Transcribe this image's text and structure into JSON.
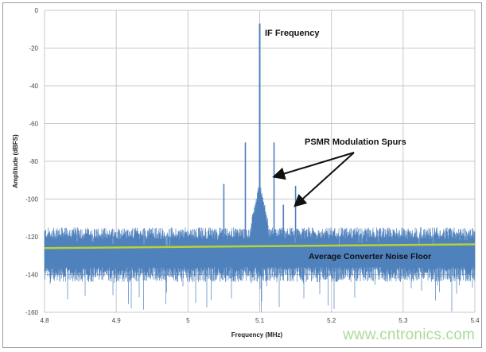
{
  "chart_data": {
    "type": "line",
    "title": "",
    "xlabel": "Frequency (MHz)",
    "ylabel": "Amplitude (dBFS)",
    "xlim": [
      4.8,
      5.4
    ],
    "ylim": [
      -160,
      0
    ],
    "xticks": [
      "4.8",
      "4.9",
      "5",
      "5.1",
      "5.2",
      "5.3",
      "5.4"
    ],
    "yticks": [
      "0",
      "-20",
      "-40",
      "-60",
      "-80",
      "-100",
      "-120",
      "-140",
      "-160"
    ],
    "grid": true,
    "series_color": "#4f81bd",
    "noise_floor_color": "#b5d334",
    "peaks": [
      {
        "x": 5.1,
        "y": -7,
        "label": "IF Frequency"
      },
      {
        "x": 5.08,
        "y": -70
      },
      {
        "x": 5.12,
        "y": -70
      },
      {
        "x": 5.05,
        "y": -92
      },
      {
        "x": 5.15,
        "y": -93
      },
      {
        "x": 5.133,
        "y": -103
      }
    ],
    "noise_band": {
      "upper": -118,
      "lower": -140,
      "min": -160
    },
    "average_noise_floor": {
      "x": [
        4.8,
        5.4
      ],
      "y": [
        -126,
        -124
      ],
      "label": "Average Converter Noise Floor"
    },
    "annotations": {
      "if_label": "IF Frequency",
      "spur_label": "PSMR Modulation Spurs",
      "floor_label": "Average Converter Noise Floor"
    }
  },
  "watermark": "www.cntronics.com"
}
